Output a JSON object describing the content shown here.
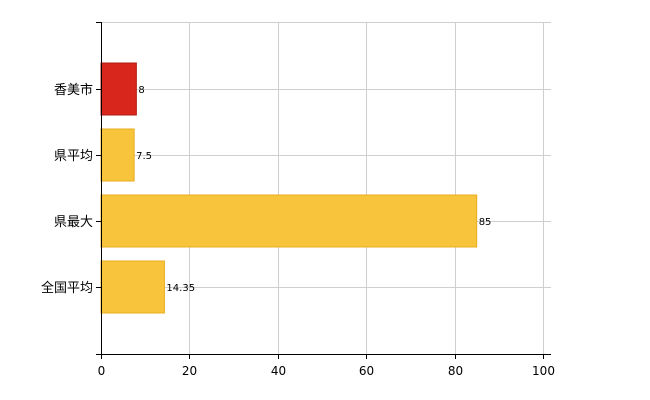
{
  "chart_data": {
    "type": "bar",
    "orientation": "horizontal",
    "title": "",
    "xlabel": "",
    "ylabel": "",
    "categories": [
      "香美市",
      "県平均",
      "県最大",
      "全国平均"
    ],
    "values": [
      8,
      7.5,
      85,
      14.35
    ],
    "value_labels": [
      "8",
      "7.5",
      "85",
      "14.35"
    ],
    "bar_colors": [
      "#d9261c",
      "#f7c43b",
      "#f7c43b",
      "#f7c43b"
    ],
    "xlim": [
      0,
      100
    ],
    "xticks": [
      0,
      20,
      40,
      60,
      80,
      100
    ],
    "grid": true,
    "legend": "none"
  }
}
